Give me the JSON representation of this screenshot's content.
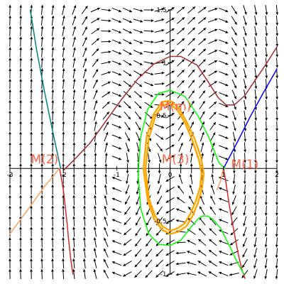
{
  "chart_data": {
    "type": "line",
    "title": "",
    "xlabel": "",
    "ylabel": "",
    "xlim": [
      -3,
      2
    ],
    "ylim": [
      -1,
      1.5
    ],
    "x_ticks": [
      {
        "value": -3,
        "label": "-3"
      },
      {
        "value": -2,
        "label": "-2"
      },
      {
        "value": -1,
        "label": "-1"
      },
      {
        "value": 0,
        "label": "0"
      },
      {
        "value": 1,
        "label": "1"
      },
      {
        "value": 2,
        "label": "2"
      }
    ],
    "y_ticks": [
      {
        "value": 1.5,
        "label": "1.5"
      },
      {
        "value": 1,
        "label": "1"
      },
      {
        "value": 0.5,
        "label": "0.5"
      },
      {
        "value": -0.5,
        "label": "-0.5"
      },
      {
        "value": -1,
        "label": "-1"
      }
    ],
    "grid": false,
    "legend": "none",
    "vector_field": {
      "shown": true,
      "color": "#000000",
      "x_step": 0.2,
      "y_step": 0.1
    },
    "series": [
      {
        "color": "#a52a2a",
        "x": [
          -2.0,
          -1.8,
          -1.5,
          -1.2,
          -0.9,
          -0.6,
          -0.3,
          0.0,
          0.2,
          0.5,
          0.7,
          0.9,
          1.05,
          1.2,
          1.4,
          1.6,
          1.8,
          2.0
        ],
        "y": [
          -0.02,
          0.08,
          0.24,
          0.45,
          0.66,
          0.85,
          0.99,
          1.06,
          1.06,
          0.98,
          0.83,
          0.67,
          0.6,
          0.6,
          0.69,
          0.84,
          0.99,
          1.15
        ]
      },
      {
        "color": "#d62728",
        "x": [
          -2.07,
          -2.0,
          -1.96,
          -1.93,
          -1.9,
          -1.86,
          -1.82
        ],
        "y": [
          0.0,
          -0.2,
          -0.38,
          -0.52,
          -0.68,
          -0.86,
          -1.0
        ]
      },
      {
        "color": "#008080",
        "x": [
          -2.05,
          -2.2,
          -2.35,
          -2.5,
          -2.62
        ],
        "y": [
          0.0,
          0.35,
          0.72,
          1.12,
          1.5
        ]
      },
      {
        "color": "#f4a460",
        "x": [
          -2.07,
          -2.35,
          -2.65,
          -3.0
        ],
        "y": [
          0.0,
          -0.17,
          -0.38,
          -0.62
        ]
      },
      {
        "color": "#0000ff",
        "x": [
          1.0,
          1.25,
          1.5,
          1.75,
          2.0
        ],
        "y": [
          0.0,
          0.24,
          0.49,
          0.72,
          0.94
        ]
      },
      {
        "color": "#f4a460",
        "x": [
          1.0,
          0.94,
          0.88
        ],
        "y": [
          0.0,
          -0.12,
          -0.2
        ]
      },
      {
        "color": "#d62728",
        "x": [
          1.0,
          1.05,
          1.1,
          1.16,
          1.22,
          1.28,
          1.34,
          1.4
        ],
        "y": [
          0.0,
          -0.15,
          -0.32,
          -0.5,
          -0.66,
          -0.82,
          -0.95,
          -1.04
        ]
      },
      {
        "color": "#00ff00",
        "x": [
          -0.6,
          -0.55,
          -0.42,
          -0.22,
          0.0,
          0.28,
          0.52,
          0.72,
          0.92,
          1.03
        ],
        "y": [
          -0.05,
          0.3,
          0.56,
          0.71,
          0.74,
          0.68,
          0.5,
          0.3,
          0.05,
          0.0
        ]
      },
      {
        "color": "#00ff00",
        "x": [
          -0.6,
          -0.55,
          -0.4,
          -0.2,
          0.0,
          0.2,
          0.4,
          0.52,
          0.6,
          0.7,
          0.8,
          0.95,
          1.1,
          1.25,
          1.38
        ],
        "y": [
          -0.05,
          -0.38,
          -0.62,
          -0.72,
          -0.73,
          -0.68,
          -0.55,
          -0.48,
          -0.45,
          -0.45,
          -0.48,
          -0.57,
          -0.72,
          -0.88,
          -1.0
        ]
      },
      {
        "color": "#ffa500",
        "x": [
          -0.5,
          -0.44,
          -0.3,
          -0.15,
          0.0,
          0.15,
          0.3,
          0.46,
          0.58,
          0.63,
          0.6,
          0.52,
          0.42,
          0.3,
          0.15,
          0.0,
          -0.15,
          -0.3,
          -0.42,
          -0.5
        ],
        "y": [
          0.0,
          0.3,
          0.52,
          0.63,
          0.64,
          0.58,
          0.45,
          0.28,
          0.1,
          -0.05,
          -0.18,
          -0.33,
          -0.45,
          -0.55,
          -0.6,
          -0.62,
          -0.58,
          -0.48,
          -0.3,
          0.0
        ]
      },
      {
        "color": "#ffa500",
        "x": [
          -0.46,
          -0.4,
          -0.28,
          -0.14,
          0.0,
          0.14,
          0.28,
          0.42,
          0.54,
          0.59,
          0.56,
          0.48,
          0.38,
          0.27,
          0.13,
          0.0,
          -0.14,
          -0.28,
          -0.4,
          -0.46
        ],
        "y": [
          0.0,
          0.28,
          0.49,
          0.6,
          0.61,
          0.55,
          0.43,
          0.26,
          0.08,
          -0.05,
          -0.18,
          -0.31,
          -0.43,
          -0.52,
          -0.57,
          -0.59,
          -0.55,
          -0.45,
          -0.28,
          0.0
        ]
      }
    ],
    "annotations": [
      {
        "text": "M(m)",
        "x": 0.1,
        "y": 0.55,
        "color": "#ff6347"
      },
      {
        "text": "M(3)",
        "x": 0.1,
        "y": 0.05,
        "color": "#ff6347"
      },
      {
        "text": "M(2)",
        "x": -2.35,
        "y": 0.05,
        "color": "#ff6347"
      },
      {
        "text": "M(1)",
        "x": 1.4,
        "y": 0.0,
        "color": "#ff6347"
      }
    ]
  }
}
